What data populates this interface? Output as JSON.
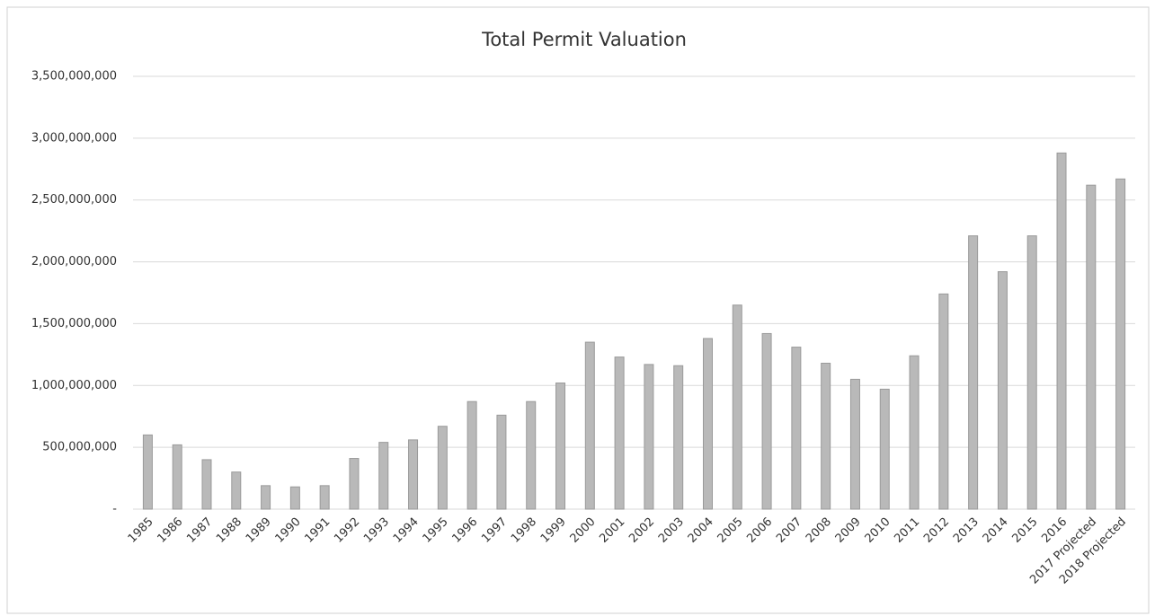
{
  "chart_data": {
    "type": "bar",
    "title": "Total Permit Valuation",
    "categories": [
      "1985",
      "1986",
      "1987",
      "1988",
      "1989",
      "1990",
      "1991",
      "1992",
      "1993",
      "1994",
      "1995",
      "1996",
      "1997",
      "1998",
      "1999",
      "2000",
      "2001",
      "2002",
      "2003",
      "2004",
      "2005",
      "2006",
      "2007",
      "2008",
      "2009",
      "2010",
      "2011",
      "2012",
      "2013",
      "2014",
      "2015",
      "2016",
      "2017 Projected",
      "2018 Projected"
    ],
    "values": [
      600000000,
      520000000,
      400000000,
      300000000,
      190000000,
      180000000,
      190000000,
      410000000,
      540000000,
      560000000,
      670000000,
      870000000,
      760000000,
      870000000,
      1020000000,
      1350000000,
      1230000000,
      1170000000,
      1160000000,
      1380000000,
      1650000000,
      1420000000,
      1310000000,
      1180000000,
      1050000000,
      970000000,
      1240000000,
      1740000000,
      2210000000,
      1920000000,
      2210000000,
      2880000000,
      2620000000,
      2670000000
    ],
    "color": "#b9b9b9",
    "ylim": [
      0,
      3500000000
    ],
    "yticks": [
      {
        "value": 0,
        "label": "-"
      },
      {
        "value": 500000000,
        "label": "500,000,000"
      },
      {
        "value": 1000000000,
        "label": "1,000,000,000"
      },
      {
        "value": 1500000000,
        "label": "1,500,000,000"
      },
      {
        "value": 2000000000,
        "label": "2,000,000,000"
      },
      {
        "value": 2500000000,
        "label": "2,500,000,000"
      },
      {
        "value": 3000000000,
        "label": "3,000,000,000"
      },
      {
        "value": 3500000000,
        "label": "3,500,000,000"
      }
    ],
    "grid": true
  }
}
